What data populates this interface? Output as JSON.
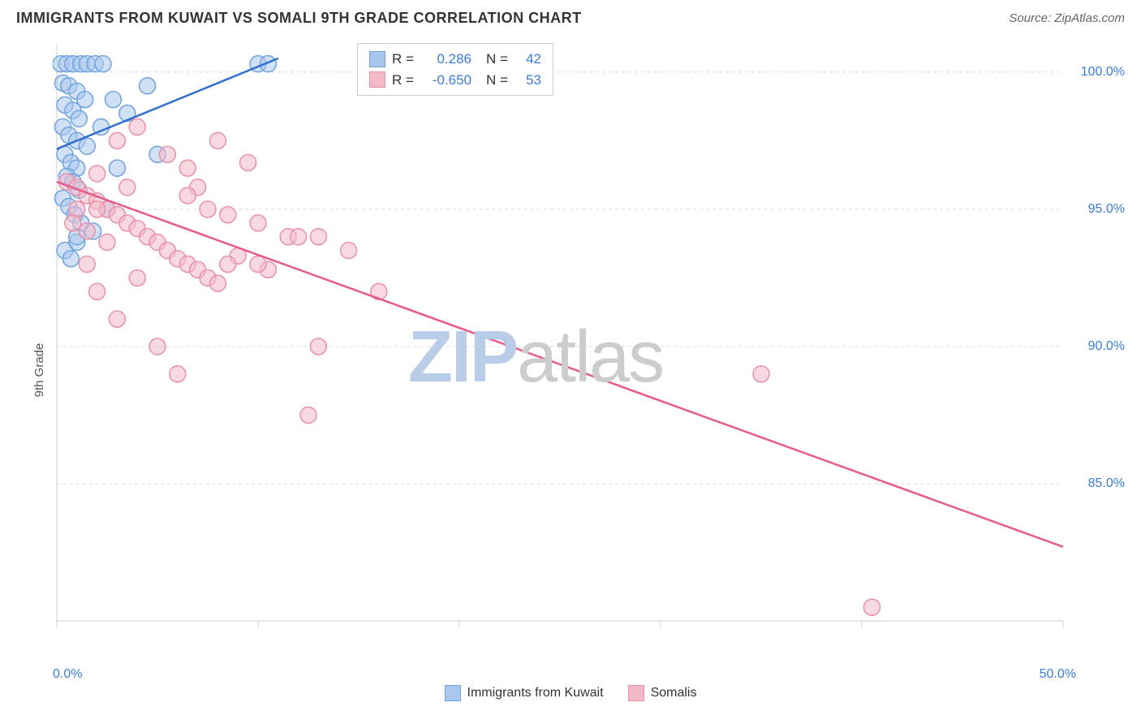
{
  "header": {
    "title": "IMMIGRANTS FROM KUWAIT VS SOMALI 9TH GRADE CORRELATION CHART",
    "source_prefix": "Source: ",
    "source_name": "ZipAtlas.com"
  },
  "watermark": {
    "part1": "ZIP",
    "part2": "atlas"
  },
  "chart": {
    "type": "scatter-with-regression",
    "ylabel": "9th Grade",
    "background_color": "#ffffff",
    "grid_color": "#d9d9d9",
    "axis_color": "#cccccc",
    "xlim": [
      0,
      50
    ],
    "ylim": [
      80,
      101
    ],
    "xticks": [
      0,
      10,
      20,
      30,
      40,
      50
    ],
    "xtick_labels": [
      "0.0%",
      "",
      "",
      "",
      "",
      "50.0%"
    ],
    "yticks": [
      85,
      90,
      95,
      100
    ],
    "ytick_labels": [
      "85.0%",
      "90.0%",
      "95.0%",
      "100.0%"
    ],
    "marker_radius": 10,
    "marker_opacity": 0.55,
    "trend_line_width": 2.5,
    "series": [
      {
        "name": "Immigrants from Kuwait",
        "color": "#6fa3e0",
        "fill": "#a9c7ec",
        "line_color": "#2f6fd0",
        "R": "0.286",
        "N": "42",
        "trend": {
          "x1": 0,
          "y1": 97.2,
          "x2": 11,
          "y2": 100.5
        },
        "points": [
          [
            0.2,
            100.3
          ],
          [
            0.5,
            100.3
          ],
          [
            0.8,
            100.3
          ],
          [
            1.2,
            100.3
          ],
          [
            1.5,
            100.3
          ],
          [
            1.9,
            100.3
          ],
          [
            2.3,
            100.3
          ],
          [
            0.3,
            99.6
          ],
          [
            0.6,
            99.5
          ],
          [
            1.0,
            99.3
          ],
          [
            1.4,
            99.0
          ],
          [
            0.4,
            98.8
          ],
          [
            0.8,
            98.6
          ],
          [
            1.1,
            98.3
          ],
          [
            0.3,
            98.0
          ],
          [
            0.6,
            97.7
          ],
          [
            1.0,
            97.5
          ],
          [
            1.5,
            97.3
          ],
          [
            0.4,
            97.0
          ],
          [
            0.7,
            96.7
          ],
          [
            1.0,
            96.5
          ],
          [
            0.5,
            96.2
          ],
          [
            0.8,
            96.0
          ],
          [
            1.1,
            95.7
          ],
          [
            0.3,
            95.4
          ],
          [
            0.6,
            95.1
          ],
          [
            0.9,
            94.8
          ],
          [
            1.2,
            94.5
          ],
          [
            0.4,
            93.5
          ],
          [
            0.7,
            93.2
          ],
          [
            5.0,
            97.0
          ],
          [
            3.5,
            98.5
          ],
          [
            2.8,
            99.0
          ],
          [
            2.2,
            98.0
          ],
          [
            10.0,
            100.3
          ],
          [
            10.5,
            100.3
          ],
          [
            4.5,
            99.5
          ],
          [
            3.0,
            96.5
          ],
          [
            2.5,
            95.0
          ],
          [
            1.8,
            94.2
          ],
          [
            1.0,
            93.8
          ],
          [
            1.0,
            94.0
          ]
        ]
      },
      {
        "name": "Somalis",
        "color": "#e890a8",
        "fill": "#f4b9c9",
        "line_color": "#e75a8a",
        "R": "-0.650",
        "N": "53",
        "trend": {
          "x1": 0,
          "y1": 96.0,
          "x2": 50,
          "y2": 82.7
        },
        "points": [
          [
            0.5,
            96.0
          ],
          [
            1.0,
            95.8
          ],
          [
            1.5,
            95.5
          ],
          [
            2.0,
            95.3
          ],
          [
            2.5,
            95.0
          ],
          [
            3.0,
            94.8
          ],
          [
            3.5,
            94.5
          ],
          [
            4.0,
            94.3
          ],
          [
            4.5,
            94.0
          ],
          [
            5.0,
            93.8
          ],
          [
            5.5,
            93.5
          ],
          [
            6.0,
            93.2
          ],
          [
            6.5,
            93.0
          ],
          [
            7.0,
            92.8
          ],
          [
            7.5,
            92.5
          ],
          [
            8.0,
            92.3
          ],
          [
            4.0,
            98.0
          ],
          [
            3.0,
            97.5
          ],
          [
            5.5,
            97.0
          ],
          [
            8.0,
            97.5
          ],
          [
            9.5,
            96.7
          ],
          [
            7.0,
            95.8
          ],
          [
            8.5,
            94.8
          ],
          [
            10.0,
            94.5
          ],
          [
            11.5,
            94.0
          ],
          [
            9.0,
            93.3
          ],
          [
            10.5,
            92.8
          ],
          [
            12.0,
            94.0
          ],
          [
            6.5,
            95.5
          ],
          [
            5.0,
            90.0
          ],
          [
            4.0,
            92.5
          ],
          [
            3.0,
            91.0
          ],
          [
            2.0,
            92.0
          ],
          [
            6.0,
            89.0
          ],
          [
            13.0,
            94.0
          ],
          [
            14.5,
            93.5
          ],
          [
            16.0,
            92.0
          ],
          [
            13.0,
            90.0
          ],
          [
            12.5,
            87.5
          ],
          [
            35.0,
            89.0
          ],
          [
            40.5,
            80.5
          ],
          [
            2.5,
            93.8
          ],
          [
            1.5,
            94.2
          ],
          [
            3.5,
            95.8
          ],
          [
            6.5,
            96.5
          ],
          [
            7.5,
            95.0
          ],
          [
            8.5,
            93.0
          ],
          [
            10.0,
            93.0
          ],
          [
            1.0,
            95.0
          ],
          [
            2.0,
            96.3
          ],
          [
            0.8,
            94.5
          ],
          [
            1.5,
            93.0
          ],
          [
            2.0,
            95.0
          ]
        ]
      }
    ]
  },
  "legend_top": {
    "r_label": "R =",
    "n_label": "N ="
  },
  "legend_bottom": {
    "items": [
      "Immigrants from Kuwait",
      "Somalis"
    ]
  }
}
